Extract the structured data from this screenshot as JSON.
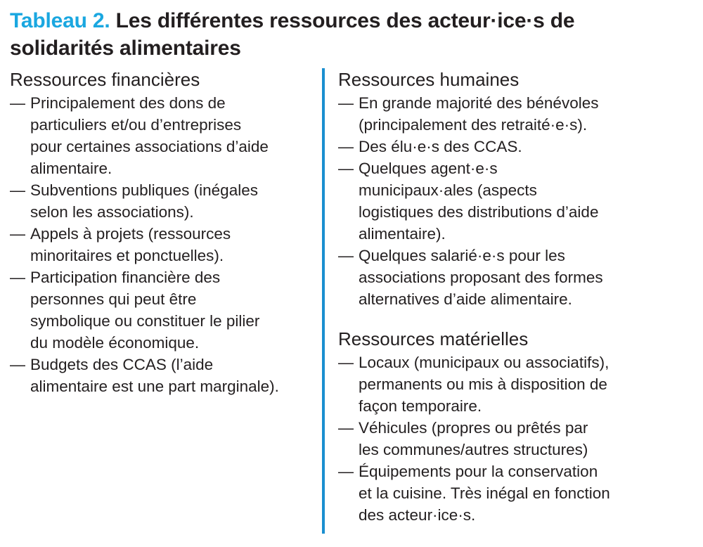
{
  "title": {
    "number": "Tableau 2.",
    "lines": [
      "Les différentes ressources des acteur·ice·s de",
      "solidarités alimentaires"
    ]
  },
  "bullet": "—",
  "columns": [
    {
      "sections": [
        {
          "heading": "Ressources financières",
          "items": [
            [
              "Principalement des dons de",
              "particuliers et/ou d’entreprises",
              "pour certaines associations d’aide",
              "alimentaire."
            ],
            [
              "Subventions publiques (inégales",
              "selon les associations)."
            ],
            [
              "Appels à projets (ressources",
              "minoritaires et ponctuelles)."
            ],
            [
              "Participation financière des",
              "personnes qui peut être",
              "symbolique ou constituer le pilier",
              "du modèle économique."
            ],
            [
              "Budgets des CCAS (l’aide",
              "alimentaire est une part marginale)."
            ]
          ]
        }
      ]
    },
    {
      "sections": [
        {
          "heading": "Ressources humaines",
          "items": [
            [
              "En grande majorité des bénévoles",
              "(principalement des retraité·e·s)."
            ],
            [
              "Des élu·e·s des CCAS."
            ],
            [
              "Quelques agent·e·s",
              "municipaux·ales (aspects",
              "logistiques des distributions d’aide",
              "alimentaire)."
            ],
            [
              "Quelques salarié·e·s pour les",
              "associations proposant des formes",
              "alternatives d’aide alimentaire."
            ]
          ]
        },
        {
          "heading": "Ressources matérielles",
          "items": [
            [
              "Locaux (municipaux ou associatifs),",
              "permanents ou mis à disposition de",
              "façon temporaire."
            ],
            [
              "Véhicules (propres ou prêtés par",
              "les communes/autres structures)"
            ],
            [
              "Équipements pour la conservation",
              "et la cuisine. Très inégal en fonction",
              "des acteur·ice·s."
            ]
          ]
        }
      ]
    }
  ]
}
